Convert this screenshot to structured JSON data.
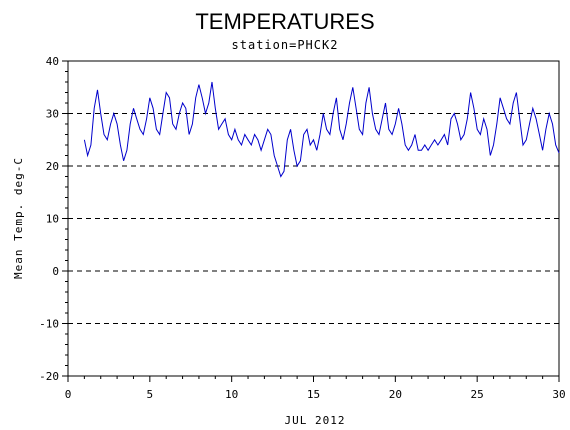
{
  "chart_data": {
    "type": "line",
    "title": "TEMPERATURES",
    "subtitle": "station=PHCK2",
    "xlabel": "JUL 2012",
    "ylabel": "Mean Temp. deg-C",
    "xlim": [
      0,
      30
    ],
    "ylim": [
      -20,
      40
    ],
    "x_ticks": [
      0,
      5,
      10,
      15,
      20,
      25,
      30
    ],
    "y_ticks": [
      -20,
      -10,
      0,
      10,
      20,
      30,
      40
    ],
    "x_tick_labels": [
      "0",
      "5",
      "10",
      "15",
      "20",
      "25",
      "30"
    ],
    "y_tick_labels": [
      "-20",
      "-10",
      "0",
      "10",
      "20",
      "30",
      "40"
    ],
    "grid": "horizontal dashed",
    "series_color": "#0000cc",
    "series": [
      {
        "values": [
          [
            1.0,
            25
          ],
          [
            1.2,
            22
          ],
          [
            1.4,
            24
          ],
          [
            1.6,
            31
          ],
          [
            1.8,
            34.5
          ],
          [
            2.0,
            30
          ],
          [
            2.2,
            26
          ],
          [
            2.4,
            25
          ],
          [
            2.6,
            28
          ],
          [
            2.8,
            30
          ],
          [
            3.0,
            28
          ],
          [
            3.2,
            24
          ],
          [
            3.4,
            21
          ],
          [
            3.6,
            23
          ],
          [
            3.8,
            28
          ],
          [
            4.0,
            31
          ],
          [
            4.2,
            29
          ],
          [
            4.4,
            27
          ],
          [
            4.6,
            26
          ],
          [
            4.8,
            29
          ],
          [
            5.0,
            33
          ],
          [
            5.2,
            31
          ],
          [
            5.4,
            27
          ],
          [
            5.6,
            26
          ],
          [
            5.8,
            30
          ],
          [
            6.0,
            34
          ],
          [
            6.2,
            33
          ],
          [
            6.4,
            28
          ],
          [
            6.6,
            27
          ],
          [
            6.8,
            30
          ],
          [
            7.0,
            32
          ],
          [
            7.2,
            31
          ],
          [
            7.4,
            26
          ],
          [
            7.6,
            28
          ],
          [
            7.8,
            33
          ],
          [
            8.0,
            35.5
          ],
          [
            8.2,
            33
          ],
          [
            8.4,
            30
          ],
          [
            8.6,
            32
          ],
          [
            8.8,
            36
          ],
          [
            9.0,
            31
          ],
          [
            9.2,
            27
          ],
          [
            9.4,
            28
          ],
          [
            9.6,
            29
          ],
          [
            9.8,
            26
          ],
          [
            10.0,
            25
          ],
          [
            10.2,
            27
          ],
          [
            10.4,
            25
          ],
          [
            10.6,
            24
          ],
          [
            10.8,
            26
          ],
          [
            11.0,
            25
          ],
          [
            11.2,
            24
          ],
          [
            11.4,
            26
          ],
          [
            11.6,
            25
          ],
          [
            11.8,
            23
          ],
          [
            12.0,
            25
          ],
          [
            12.2,
            27
          ],
          [
            12.4,
            26
          ],
          [
            12.6,
            22
          ],
          [
            12.8,
            20
          ],
          [
            13.0,
            18
          ],
          [
            13.2,
            19
          ],
          [
            13.4,
            25
          ],
          [
            13.6,
            27
          ],
          [
            13.8,
            23
          ],
          [
            14.0,
            20
          ],
          [
            14.2,
            21
          ],
          [
            14.4,
            26
          ],
          [
            14.6,
            27
          ],
          [
            14.8,
            24
          ],
          [
            15.0,
            25
          ],
          [
            15.2,
            23
          ],
          [
            15.4,
            26
          ],
          [
            15.6,
            30
          ],
          [
            15.8,
            27
          ],
          [
            16.0,
            26
          ],
          [
            16.2,
            30
          ],
          [
            16.4,
            33
          ],
          [
            16.6,
            27
          ],
          [
            16.8,
            25
          ],
          [
            17.0,
            28
          ],
          [
            17.2,
            32
          ],
          [
            17.4,
            35
          ],
          [
            17.6,
            31
          ],
          [
            17.8,
            27
          ],
          [
            18.0,
            26
          ],
          [
            18.2,
            32
          ],
          [
            18.4,
            35
          ],
          [
            18.6,
            30
          ],
          [
            18.8,
            27
          ],
          [
            19.0,
            26
          ],
          [
            19.2,
            29
          ],
          [
            19.4,
            32
          ],
          [
            19.6,
            27
          ],
          [
            19.8,
            26
          ],
          [
            20.0,
            28
          ],
          [
            20.2,
            31
          ],
          [
            20.4,
            28
          ],
          [
            20.6,
            24
          ],
          [
            20.8,
            23
          ],
          [
            21.0,
            24
          ],
          [
            21.2,
            26
          ],
          [
            21.4,
            23
          ],
          [
            21.6,
            23
          ],
          [
            21.8,
            24
          ],
          [
            22.0,
            23
          ],
          [
            22.2,
            24
          ],
          [
            22.4,
            25
          ],
          [
            22.6,
            24
          ],
          [
            22.8,
            25
          ],
          [
            23.0,
            26
          ],
          [
            23.2,
            24
          ],
          [
            23.4,
            29
          ],
          [
            23.6,
            30
          ],
          [
            23.8,
            28
          ],
          [
            24.0,
            25
          ],
          [
            24.2,
            26
          ],
          [
            24.4,
            29
          ],
          [
            24.6,
            34
          ],
          [
            24.8,
            31
          ],
          [
            25.0,
            27
          ],
          [
            25.2,
            26
          ],
          [
            25.4,
            29
          ],
          [
            25.6,
            27
          ],
          [
            25.8,
            22
          ],
          [
            26.0,
            24
          ],
          [
            26.2,
            28
          ],
          [
            26.4,
            33
          ],
          [
            26.6,
            31
          ],
          [
            26.8,
            29
          ],
          [
            27.0,
            28
          ],
          [
            27.2,
            32
          ],
          [
            27.4,
            34
          ],
          [
            27.6,
            29
          ],
          [
            27.8,
            24
          ],
          [
            28.0,
            25
          ],
          [
            28.2,
            28
          ],
          [
            28.4,
            31
          ],
          [
            28.6,
            29
          ],
          [
            28.8,
            26
          ],
          [
            29.0,
            23
          ],
          [
            29.2,
            27
          ],
          [
            29.4,
            30
          ],
          [
            29.6,
            28
          ],
          [
            29.8,
            24
          ],
          [
            30.0,
            22.5
          ]
        ]
      }
    ]
  }
}
